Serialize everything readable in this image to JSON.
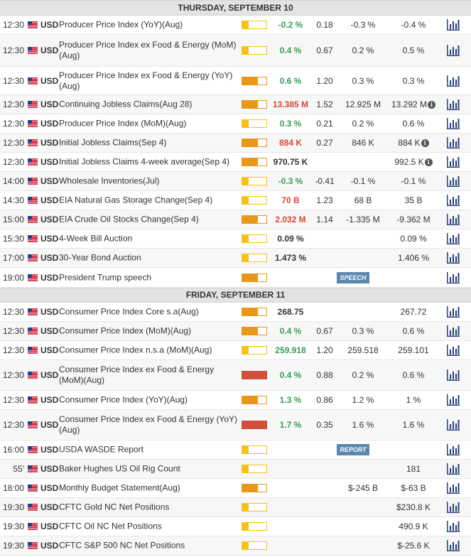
{
  "days": [
    {
      "title": "THURSDAY, SEPTEMBER 10",
      "events": [
        {
          "time": "12:30",
          "currency": "USD",
          "name": "Producer Price Index (YoY)(Aug)",
          "volatility": "low",
          "actual": "-0.2 %",
          "actual_color": "pos",
          "deviation": "0.18",
          "consensus": "-0.3 %",
          "previous": "-0.4 %",
          "info": false,
          "tag": ""
        },
        {
          "time": "12:30",
          "currency": "USD",
          "name": "Producer Price Index ex Food & Energy (MoM)(Aug)",
          "volatility": "low",
          "actual": "0.4 %",
          "actual_color": "pos",
          "deviation": "0.67",
          "consensus": "0.2 %",
          "previous": "0.5 %",
          "info": false,
          "tag": ""
        },
        {
          "time": "12:30",
          "currency": "USD",
          "name": "Producer Price Index ex Food & Energy (YoY)(Aug)",
          "volatility": "med",
          "actual": "0.6 %",
          "actual_color": "pos",
          "deviation": "1.20",
          "consensus": "0.3 %",
          "previous": "0.3 %",
          "info": false,
          "tag": ""
        },
        {
          "time": "12:30",
          "currency": "USD",
          "name": "Continuing Jobless Claims(Aug 28)",
          "volatility": "med",
          "actual": "13.385 M",
          "actual_color": "neg",
          "deviation": "1.52",
          "consensus": "12.925 M",
          "previous": "13.292 M",
          "info": true,
          "tag": ""
        },
        {
          "time": "12:30",
          "currency": "USD",
          "name": "Producer Price Index (MoM)(Aug)",
          "volatility": "low",
          "actual": "0.3 %",
          "actual_color": "pos",
          "deviation": "0.21",
          "consensus": "0.2 %",
          "previous": "0.6 %",
          "info": false,
          "tag": ""
        },
        {
          "time": "12:30",
          "currency": "USD",
          "name": "Initial Jobless Claims(Sep 4)",
          "volatility": "med",
          "actual": "884 K",
          "actual_color": "neg",
          "deviation": "0.27",
          "consensus": "846 K",
          "previous": "884 K",
          "info": true,
          "tag": ""
        },
        {
          "time": "12:30",
          "currency": "USD",
          "name": "Initial Jobless Claims 4-week average(Sep 4)",
          "volatility": "med",
          "actual": "970.75 K",
          "actual_color": "neu",
          "deviation": "",
          "consensus": "",
          "previous": "992.5 K",
          "info": true,
          "tag": ""
        },
        {
          "time": "14:00",
          "currency": "USD",
          "name": "Wholesale Inventories(Jul)",
          "volatility": "low",
          "actual": "-0.3 %",
          "actual_color": "pos",
          "deviation": "-0.41",
          "consensus": "-0.1 %",
          "previous": "-0.1 %",
          "info": false,
          "tag": ""
        },
        {
          "time": "14:30",
          "currency": "USD",
          "name": "EIA Natural Gas Storage Change(Sep 4)",
          "volatility": "low",
          "actual": "70 B",
          "actual_color": "neg",
          "deviation": "1.23",
          "consensus": "68 B",
          "previous": "35 B",
          "info": false,
          "tag": ""
        },
        {
          "time": "15:00",
          "currency": "USD",
          "name": "EIA Crude Oil Stocks Change(Sep 4)",
          "volatility": "med",
          "actual": "2.032 M",
          "actual_color": "neg",
          "deviation": "1.14",
          "consensus": "-1.335 M",
          "previous": "-9.362 M",
          "info": false,
          "tag": ""
        },
        {
          "time": "15:30",
          "currency": "USD",
          "name": "4-Week Bill Auction",
          "volatility": "low",
          "actual": "0.09 %",
          "actual_color": "neu",
          "deviation": "",
          "consensus": "",
          "previous": "0.09 %",
          "info": false,
          "tag": ""
        },
        {
          "time": "17:00",
          "currency": "USD",
          "name": "30-Year Bond Auction",
          "volatility": "low",
          "actual": "1.473 %",
          "actual_color": "neu",
          "deviation": "",
          "consensus": "",
          "previous": "1.406 %",
          "info": false,
          "tag": ""
        },
        {
          "time": "19:00",
          "currency": "USD",
          "name": "President Trump speech",
          "volatility": "med",
          "actual": "",
          "actual_color": "neu",
          "deviation": "",
          "consensus": "",
          "previous": "",
          "info": false,
          "tag": "SPEECH"
        }
      ]
    },
    {
      "title": "FRIDAY, SEPTEMBER 11",
      "events": [
        {
          "time": "12:30",
          "currency": "USD",
          "name": "Consumer Price Index Core s.a(Aug)",
          "volatility": "med",
          "actual": "268.75",
          "actual_color": "neu",
          "deviation": "",
          "consensus": "",
          "previous": "267.72",
          "info": false,
          "tag": ""
        },
        {
          "time": "12:30",
          "currency": "USD",
          "name": "Consumer Price Index (MoM)(Aug)",
          "volatility": "med",
          "actual": "0.4 %",
          "actual_color": "pos",
          "deviation": "0.67",
          "consensus": "0.3 %",
          "previous": "0.6 %",
          "info": false,
          "tag": ""
        },
        {
          "time": "12:30",
          "currency": "USD",
          "name": "Consumer Price Index n.s.a (MoM)(Aug)",
          "volatility": "low",
          "actual": "259.918",
          "actual_color": "pos",
          "deviation": "1.20",
          "consensus": "259.518",
          "previous": "259.101",
          "info": false,
          "tag": ""
        },
        {
          "time": "12:30",
          "currency": "USD",
          "name": "Consumer Price Index ex Food & Energy (MoM)(Aug)",
          "volatility": "high",
          "actual": "0.4 %",
          "actual_color": "pos",
          "deviation": "0.88",
          "consensus": "0.2 %",
          "previous": "0.6 %",
          "info": false,
          "tag": ""
        },
        {
          "time": "12:30",
          "currency": "USD",
          "name": "Consumer Price Index (YoY)(Aug)",
          "volatility": "med",
          "actual": "1.3 %",
          "actual_color": "pos",
          "deviation": "0.86",
          "consensus": "1.2 %",
          "previous": "1 %",
          "info": false,
          "tag": ""
        },
        {
          "time": "12:30",
          "currency": "USD",
          "name": "Consumer Price Index ex Food & Energy (YoY)(Aug)",
          "volatility": "high",
          "actual": "1.7 %",
          "actual_color": "pos",
          "deviation": "0.35",
          "consensus": "1.6 %",
          "previous": "1.6 %",
          "info": false,
          "tag": ""
        },
        {
          "time": "16:00",
          "currency": "USD",
          "name": "USDA WASDE Report",
          "volatility": "low",
          "actual": "",
          "actual_color": "neu",
          "deviation": "",
          "consensus": "",
          "previous": "",
          "info": false,
          "tag": "REPORT"
        },
        {
          "time": "55'",
          "currency": "USD",
          "name": "Baker Hughes US Oil Rig Count",
          "volatility": "low",
          "actual": "",
          "actual_color": "neu",
          "deviation": "",
          "consensus": "",
          "previous": "181",
          "info": false,
          "tag": ""
        },
        {
          "time": "18:00",
          "currency": "USD",
          "name": "Monthly Budget Statement(Aug)",
          "volatility": "med",
          "actual": "",
          "actual_color": "neu",
          "deviation": "",
          "consensus": "$-245 B",
          "previous": "$-63 B",
          "info": false,
          "tag": ""
        },
        {
          "time": "19:30",
          "currency": "USD",
          "name": "CFTC Gold NC Net Positions",
          "volatility": "low",
          "actual": "",
          "actual_color": "neu",
          "deviation": "",
          "consensus": "",
          "previous": "$230.8 K",
          "info": false,
          "tag": ""
        },
        {
          "time": "19:30",
          "currency": "USD",
          "name": "CFTC Oil NC Net Positions",
          "volatility": "low",
          "actual": "",
          "actual_color": "neu",
          "deviation": "",
          "consensus": "",
          "previous": "490.9 K",
          "info": false,
          "tag": ""
        },
        {
          "time": "19:30",
          "currency": "USD",
          "name": "CFTC S&P 500 NC Net Positions",
          "volatility": "low",
          "actual": "",
          "actual_color": "neu",
          "deviation": "",
          "consensus": "",
          "previous": "$-25.6 K",
          "info": false,
          "tag": ""
        }
      ]
    }
  ],
  "icons": {
    "flag": "us-flag-icon",
    "chart": "bar-chart-icon",
    "info": "info-icon"
  },
  "colors": {
    "positive": "#3b9a5b",
    "negative": "#d24a3a",
    "volatility_low": "#f5c21b",
    "volatility_med": "#e9971b",
    "volatility_high": "#d24f3e",
    "tag_bg": "#5d87ad"
  }
}
